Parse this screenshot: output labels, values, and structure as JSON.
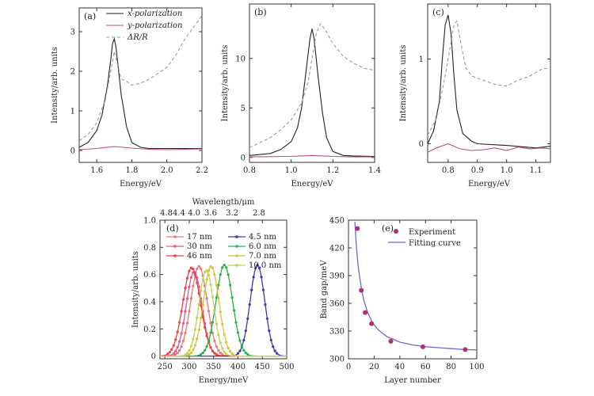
{
  "chart_data": [
    {
      "panel": "(a)",
      "type": "line",
      "xlabel": "Energy/eV",
      "ylabel": "Intensity/arb. units",
      "xlim": [
        1.5,
        2.2
      ],
      "ylim": [
        -0.3,
        3.6
      ],
      "xticks": [
        "1.6",
        "1.8",
        "2.0",
        "2.2"
      ],
      "xtick_values": [
        1.6,
        1.8,
        2.0,
        2.2
      ],
      "yticks": [
        "0",
        "1",
        "2",
        "3"
      ],
      "ytick_values": [
        0,
        1,
        2,
        3
      ],
      "legend": [
        "x-polarization",
        "y-polarization",
        "ΔR/R"
      ],
      "series": [
        {
          "name": "x-polarization",
          "color": "#222222",
          "dash": "solid",
          "x": [
            1.5,
            1.55,
            1.6,
            1.63,
            1.66,
            1.68,
            1.69,
            1.7,
            1.71,
            1.72,
            1.74,
            1.77,
            1.8,
            1.85,
            1.9,
            2.0,
            2.1,
            2.2
          ],
          "y": [
            0.08,
            0.2,
            0.5,
            0.9,
            1.6,
            2.3,
            2.7,
            2.82,
            2.6,
            2.2,
            1.4,
            0.6,
            0.2,
            0.08,
            0.05,
            0.05,
            0.05,
            0.05
          ]
        },
        {
          "name": "y-polarization",
          "color": "#c0506a",
          "dash": "solid",
          "x": [
            1.5,
            1.6,
            1.7,
            1.8,
            1.9,
            2.0,
            2.1,
            2.2
          ],
          "y": [
            0.02,
            0.05,
            0.1,
            0.06,
            0.03,
            0.02,
            0.03,
            0.04
          ]
        },
        {
          "name": "ΔR/R",
          "color": "#999999",
          "dash": "dashed",
          "x": [
            1.5,
            1.55,
            1.6,
            1.65,
            1.68,
            1.7,
            1.72,
            1.74,
            1.77,
            1.8,
            1.85,
            1.9,
            2.0,
            2.05,
            2.1,
            2.15,
            2.2
          ],
          "y": [
            0.25,
            0.4,
            0.7,
            1.3,
            2.0,
            2.5,
            2.15,
            1.8,
            1.75,
            1.65,
            1.7,
            1.8,
            2.1,
            2.4,
            2.8,
            3.1,
            3.4
          ]
        }
      ]
    },
    {
      "panel": "(b)",
      "type": "line",
      "xlabel": "Energy/eV",
      "ylabel": "Intensity/arb. units",
      "xlim": [
        0.8,
        1.4
      ],
      "ylim": [
        -0.5,
        15.5
      ],
      "xticks": [
        "0.8",
        "1.0",
        "1.2",
        "1.4"
      ],
      "xtick_values": [
        0.8,
        1.0,
        1.2,
        1.4
      ],
      "yticks": [
        "0",
        "5",
        "10"
      ],
      "ytick_values": [
        0,
        5,
        10
      ],
      "series": [
        {
          "name": "x-polarization",
          "color": "#222222",
          "dash": "solid",
          "x": [
            0.8,
            0.9,
            0.95,
            1.0,
            1.03,
            1.05,
            1.07,
            1.09,
            1.1,
            1.11,
            1.13,
            1.15,
            1.17,
            1.2,
            1.25,
            1.3,
            1.4
          ],
          "y": [
            0.2,
            0.4,
            0.8,
            1.6,
            3.0,
            5.0,
            8.5,
            12.0,
            13.0,
            12.0,
            8.0,
            4.5,
            2.0,
            0.6,
            0.2,
            0.15,
            0.1
          ]
        },
        {
          "name": "y-polarization",
          "color": "#c0506a",
          "dash": "solid",
          "x": [
            0.8,
            1.0,
            1.1,
            1.2,
            1.3,
            1.4
          ],
          "y": [
            0.05,
            0.1,
            0.2,
            0.1,
            0.05,
            0.05
          ]
        },
        {
          "name": "ΔR/R",
          "color": "#999999",
          "dash": "dashed",
          "x": [
            0.8,
            0.9,
            0.95,
            1.0,
            1.05,
            1.08,
            1.1,
            1.12,
            1.14,
            1.16,
            1.2,
            1.25,
            1.3,
            1.35,
            1.4
          ],
          "y": [
            1.0,
            2.0,
            2.8,
            3.8,
            5.5,
            7.5,
            10.0,
            12.5,
            13.5,
            13.0,
            11.5,
            10.2,
            9.5,
            9.0,
            8.8
          ]
        }
      ]
    },
    {
      "panel": "(c)",
      "type": "line",
      "xlabel": "Energy/eV",
      "ylabel": "Intensity/arb. units",
      "xlim": [
        0.73,
        1.15
      ],
      "ylim": [
        -0.22,
        1.65
      ],
      "xticks": [
        "0.8",
        "0.9",
        "1.0",
        "1.1"
      ],
      "xtick_values": [
        0.8,
        0.9,
        1.0,
        1.1
      ],
      "yticks": [
        "0",
        "1"
      ],
      "ytick_values": [
        0,
        1
      ],
      "series": [
        {
          "name": "x-polarization",
          "color": "#222222",
          "dash": "solid",
          "x": [
            0.73,
            0.75,
            0.77,
            0.78,
            0.79,
            0.8,
            0.81,
            0.82,
            0.83,
            0.85,
            0.88,
            0.9,
            1.0,
            1.1,
            1.15
          ],
          "y": [
            0.0,
            0.15,
            0.5,
            1.0,
            1.4,
            1.52,
            1.3,
            0.8,
            0.4,
            0.12,
            0.03,
            0.0,
            -0.02,
            -0.05,
            -0.03
          ]
        },
        {
          "name": "y-polarization",
          "color": "#c0506a",
          "dash": "solid",
          "x": [
            0.73,
            0.76,
            0.8,
            0.84,
            0.88,
            0.92,
            0.96,
            1.0,
            1.04,
            1.08,
            1.12,
            1.15
          ],
          "y": [
            -0.1,
            -0.05,
            0.0,
            -0.06,
            -0.08,
            -0.07,
            -0.05,
            -0.08,
            -0.04,
            -0.06,
            -0.05,
            -0.06
          ]
        },
        {
          "name": "ΔR/R",
          "color": "#999999",
          "dash": "dashed",
          "x": [
            0.73,
            0.76,
            0.79,
            0.81,
            0.82,
            0.83,
            0.84,
            0.86,
            0.88,
            0.92,
            0.96,
            1.0,
            1.04,
            1.08,
            1.12,
            1.15
          ],
          "y": [
            0.1,
            0.3,
            0.8,
            1.2,
            1.4,
            1.45,
            1.25,
            0.9,
            0.8,
            0.75,
            0.7,
            0.68,
            0.75,
            0.8,
            0.88,
            0.9
          ]
        }
      ]
    },
    {
      "panel": "(d)",
      "type": "line",
      "xlabel": "Energy/meV",
      "ylabel": "Intensity/arb. units",
      "top_axis_label": "Wavelength/μm",
      "top_ticks": [
        "4.84.4",
        "4.0",
        "3.6",
        "3.2",
        "2.8"
      ],
      "top_tick_energies": [
        266,
        310,
        344,
        388,
        443
      ],
      "xlim": [
        240,
        500
      ],
      "ylim": [
        -0.02,
        1.0
      ],
      "xticks": [
        "250",
        "300",
        "350",
        "400",
        "450",
        "500"
      ],
      "xtick_values": [
        250,
        300,
        350,
        400,
        450,
        500
      ],
      "yticks": [
        "0",
        "0.2",
        "0.4",
        "0.6",
        "0.8",
        "1.0"
      ],
      "ytick_values": [
        0,
        0.2,
        0.4,
        0.6,
        0.8,
        1.0
      ],
      "legend": [
        "17 nm",
        "30 nm",
        "46 nm",
        "4.5 nm",
        "6.0 nm",
        "7.0 nm",
        "10.0 nm"
      ],
      "series": [
        {
          "name": "17 nm",
          "color": "#e07a7a",
          "center": 320,
          "width": 17,
          "peak": 0.66
        },
        {
          "name": "30 nm",
          "color": "#e05a8a",
          "center": 310,
          "width": 16,
          "peak": 0.62
        },
        {
          "name": "46 nm",
          "color": "#ee4040",
          "center": 305,
          "width": 18,
          "peak": 0.65
        },
        {
          "name": "4.5 nm",
          "color": "#3a3ab0",
          "center": 440,
          "width": 15,
          "peak": 0.67
        },
        {
          "name": "6.0 nm",
          "color": "#2ab04a",
          "center": 372,
          "width": 17,
          "peak": 0.67
        },
        {
          "name": "7.0 nm",
          "color": "#d6c23a",
          "center": 345,
          "width": 16,
          "peak": 0.66
        },
        {
          "name": "10.0 nm",
          "color": "#bcd45a",
          "center": 335,
          "width": 15,
          "peak": 0.63
        }
      ]
    },
    {
      "panel": "(e)",
      "type": "scatter",
      "xlabel": "Layer number",
      "ylabel": "Band gap/meV",
      "xlim": [
        0,
        100
      ],
      "ylim": [
        300,
        450
      ],
      "xticks": [
        "0",
        "20",
        "40",
        "60",
        "80",
        "100"
      ],
      "xtick_values": [
        0,
        20,
        40,
        60,
        80,
        100
      ],
      "yticks": [
        "300",
        "330",
        "360",
        "390",
        "420",
        "450"
      ],
      "ytick_values": [
        300,
        330,
        360,
        390,
        420,
        450
      ],
      "legend": [
        "Experiment",
        "Fitting curve"
      ],
      "series": [
        {
          "name": "Experiment",
          "color": "#b03070",
          "x": [
            7,
            10,
            13,
            18,
            33,
            58,
            91
          ],
          "y": [
            441,
            374,
            350,
            338,
            319,
            313,
            310
          ]
        },
        {
          "name": "Fitting curve",
          "color": "#6a6ad0",
          "x": [
            5,
            6,
            7,
            8,
            10,
            12,
            15,
            18,
            22,
            26,
            30,
            35,
            40,
            50,
            60,
            70,
            80,
            90,
            100
          ],
          "y": [
            448,
            425,
            408,
            395,
            377,
            363,
            350,
            341,
            333,
            328,
            324,
            321,
            318,
            315,
            313,
            312,
            311,
            310,
            309.5
          ]
        }
      ]
    }
  ]
}
